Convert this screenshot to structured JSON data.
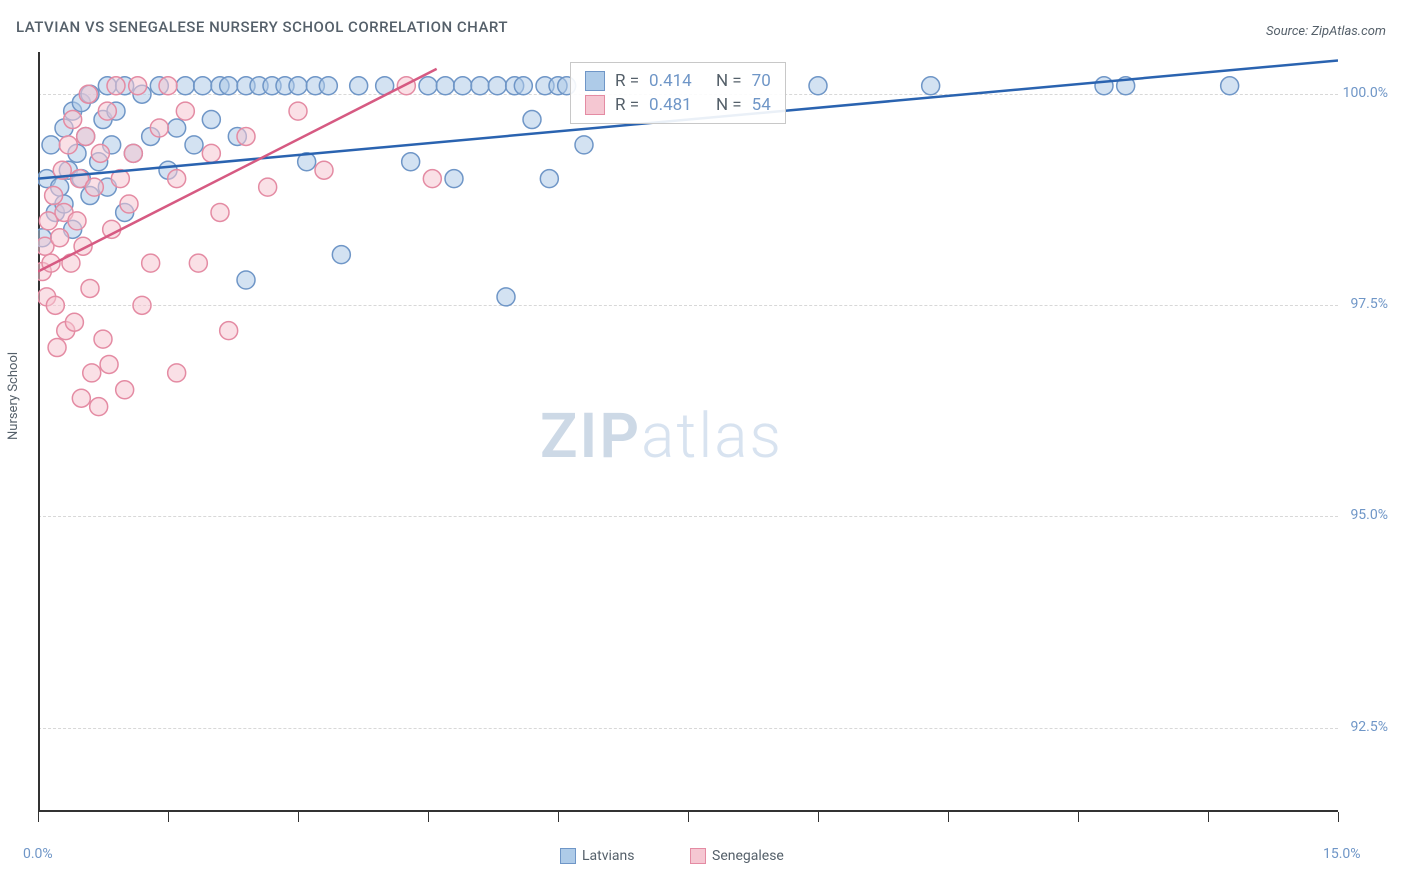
{
  "title": "LATVIAN VS SENEGALESE NURSERY SCHOOL CORRELATION CHART",
  "source": "Source: ZipAtlas.com",
  "ylabel": "Nursery School",
  "watermark": {
    "zip": "ZIP",
    "atlas": "atlas"
  },
  "chart": {
    "type": "scatter",
    "xlim": [
      0,
      15
    ],
    "ylim": [
      91.5,
      100.5
    ],
    "x_ticks": [
      0,
      1.5,
      3,
      4.5,
      6,
      7.5,
      9,
      10.5,
      12,
      13.5,
      15
    ],
    "x_tick_labels": {
      "0": "0.0%",
      "15": "15.0%"
    },
    "y_ticks": [
      92.5,
      95.0,
      97.5,
      100.0
    ],
    "y_tick_labels": [
      "92.5%",
      "95.0%",
      "97.5%",
      "100.0%"
    ],
    "grid_color": "#d8d8d8",
    "axis_color": "#333333",
    "background_color": "#ffffff",
    "marker_radius": 9,
    "marker_stroke_width": 1.5,
    "line_width": 2.5,
    "series": [
      {
        "name": "Latvians",
        "color_fill": "#aecbe8",
        "color_stroke": "#6f96c7",
        "line_color": "#2a63b0",
        "r_label": "R =",
        "r_value": "0.414",
        "n_label": "N =",
        "n_value": "70",
        "trend": {
          "x1": 0,
          "y1": 99.0,
          "x2": 15,
          "y2": 100.4
        },
        "points": [
          [
            0.05,
            98.3
          ],
          [
            0.1,
            99.0
          ],
          [
            0.15,
            99.4
          ],
          [
            0.2,
            98.6
          ],
          [
            0.25,
            98.9
          ],
          [
            0.3,
            99.6
          ],
          [
            0.3,
            98.7
          ],
          [
            0.35,
            99.1
          ],
          [
            0.4,
            99.8
          ],
          [
            0.4,
            98.4
          ],
          [
            0.45,
            99.3
          ],
          [
            0.5,
            99.9
          ],
          [
            0.5,
            99.0
          ],
          [
            0.55,
            99.5
          ],
          [
            0.6,
            100.0
          ],
          [
            0.6,
            98.8
          ],
          [
            0.7,
            99.2
          ],
          [
            0.75,
            99.7
          ],
          [
            0.8,
            100.1
          ],
          [
            0.8,
            98.9
          ],
          [
            0.85,
            99.4
          ],
          [
            0.9,
            99.8
          ],
          [
            1.0,
            100.1
          ],
          [
            1.0,
            98.6
          ],
          [
            1.1,
            99.3
          ],
          [
            1.2,
            100.0
          ],
          [
            1.3,
            99.5
          ],
          [
            1.4,
            100.1
          ],
          [
            1.5,
            99.1
          ],
          [
            1.6,
            99.6
          ],
          [
            1.7,
            100.1
          ],
          [
            1.8,
            99.4
          ],
          [
            1.9,
            100.1
          ],
          [
            2.0,
            99.7
          ],
          [
            2.1,
            100.1
          ],
          [
            2.2,
            100.1
          ],
          [
            2.3,
            99.5
          ],
          [
            2.4,
            100.1
          ],
          [
            2.4,
            97.8
          ],
          [
            2.55,
            100.1
          ],
          [
            2.7,
            100.1
          ],
          [
            2.85,
            100.1
          ],
          [
            3.0,
            100.1
          ],
          [
            3.1,
            99.2
          ],
          [
            3.2,
            100.1
          ],
          [
            3.35,
            100.1
          ],
          [
            3.5,
            98.1
          ],
          [
            3.7,
            100.1
          ],
          [
            4.0,
            100.1
          ],
          [
            4.3,
            99.2
          ],
          [
            4.5,
            100.1
          ],
          [
            4.7,
            100.1
          ],
          [
            4.8,
            99.0
          ],
          [
            4.9,
            100.1
          ],
          [
            5.1,
            100.1
          ],
          [
            5.3,
            100.1
          ],
          [
            5.4,
            97.6
          ],
          [
            5.5,
            100.1
          ],
          [
            5.6,
            100.1
          ],
          [
            5.7,
            99.7
          ],
          [
            5.85,
            100.1
          ],
          [
            5.9,
            99.0
          ],
          [
            6.0,
            100.1
          ],
          [
            6.1,
            100.1
          ],
          [
            6.3,
            99.4
          ],
          [
            9.0,
            100.1
          ],
          [
            10.3,
            100.1
          ],
          [
            12.3,
            100.1
          ],
          [
            12.55,
            100.1
          ],
          [
            13.75,
            100.1
          ]
        ]
      },
      {
        "name": "Senegalese",
        "color_fill": "#f5c7d2",
        "color_stroke": "#e48ba3",
        "line_color": "#d65a82",
        "r_label": "R =",
        "r_value": "0.481",
        "n_label": "N =",
        "n_value": "54",
        "trend": {
          "x1": 0,
          "y1": 97.9,
          "x2": 4.6,
          "y2": 100.3
        },
        "points": [
          [
            0.05,
            97.9
          ],
          [
            0.08,
            98.2
          ],
          [
            0.1,
            97.6
          ],
          [
            0.12,
            98.5
          ],
          [
            0.15,
            98.0
          ],
          [
            0.18,
            98.8
          ],
          [
            0.2,
            97.5
          ],
          [
            0.22,
            97.0
          ],
          [
            0.25,
            98.3
          ],
          [
            0.28,
            99.1
          ],
          [
            0.3,
            98.6
          ],
          [
            0.32,
            97.2
          ],
          [
            0.35,
            99.4
          ],
          [
            0.38,
            98.0
          ],
          [
            0.4,
            99.7
          ],
          [
            0.42,
            97.3
          ],
          [
            0.45,
            98.5
          ],
          [
            0.48,
            99.0
          ],
          [
            0.5,
            96.4
          ],
          [
            0.52,
            98.2
          ],
          [
            0.55,
            99.5
          ],
          [
            0.58,
            100.0
          ],
          [
            0.6,
            97.7
          ],
          [
            0.62,
            96.7
          ],
          [
            0.65,
            98.9
          ],
          [
            0.7,
            96.3
          ],
          [
            0.72,
            99.3
          ],
          [
            0.75,
            97.1
          ],
          [
            0.8,
            99.8
          ],
          [
            0.82,
            96.8
          ],
          [
            0.85,
            98.4
          ],
          [
            0.9,
            100.1
          ],
          [
            0.95,
            99.0
          ],
          [
            1.0,
            96.5
          ],
          [
            1.05,
            98.7
          ],
          [
            1.1,
            99.3
          ],
          [
            1.15,
            100.1
          ],
          [
            1.2,
            97.5
          ],
          [
            1.3,
            98.0
          ],
          [
            1.4,
            99.6
          ],
          [
            1.5,
            100.1
          ],
          [
            1.6,
            99.0
          ],
          [
            1.6,
            96.7
          ],
          [
            1.7,
            99.8
          ],
          [
            1.85,
            98.0
          ],
          [
            2.0,
            99.3
          ],
          [
            2.1,
            98.6
          ],
          [
            2.2,
            97.2
          ],
          [
            2.4,
            99.5
          ],
          [
            2.65,
            98.9
          ],
          [
            3.0,
            99.8
          ],
          [
            3.3,
            99.1
          ],
          [
            4.25,
            100.1
          ],
          [
            4.55,
            99.0
          ]
        ]
      }
    ]
  },
  "legend": {
    "items": [
      {
        "label": "Latvians",
        "fill": "#aecbe8",
        "stroke": "#6f96c7"
      },
      {
        "label": "Senegalese",
        "fill": "#f5c7d2",
        "stroke": "#e48ba3"
      }
    ]
  }
}
